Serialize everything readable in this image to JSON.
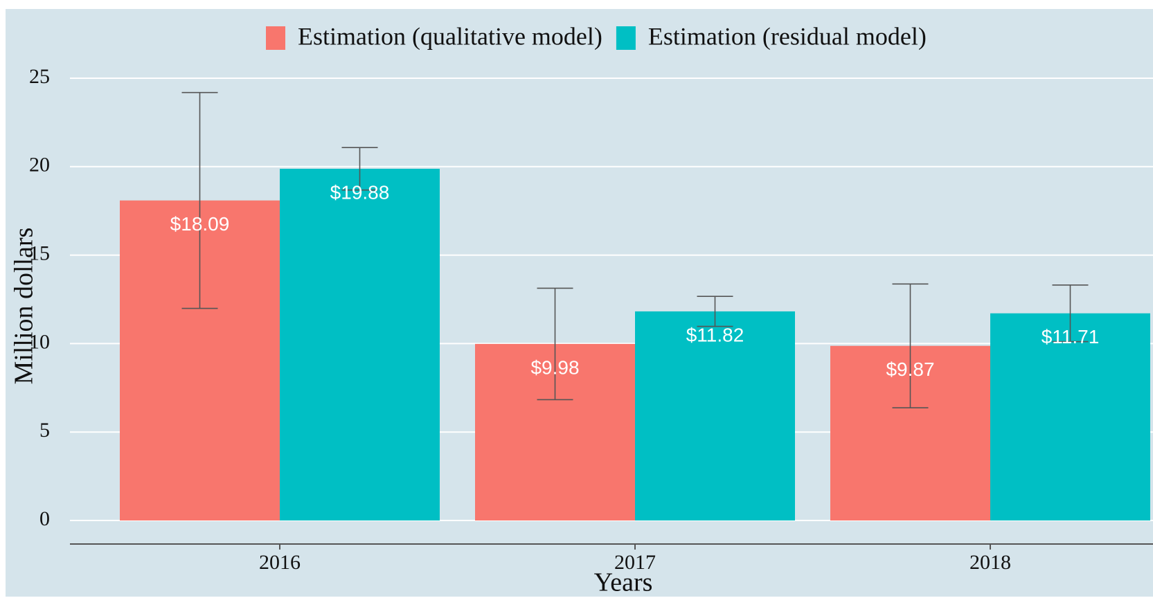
{
  "chart_data": {
    "type": "bar",
    "x_label": "Years",
    "y_label": "Million dollars",
    "categories": [
      "2016",
      "2017",
      "2018"
    ],
    "series": [
      {
        "name": "Estimation (qualitative model)",
        "color": "#f8766d",
        "values": [
          18.09,
          9.98,
          9.87
        ],
        "value_labels": [
          "$18.09",
          "$9.98",
          "$9.87"
        ],
        "errors": [
          6.1,
          3.15,
          3.5
        ]
      },
      {
        "name": "Estimation (residual model)",
        "color": "#00bfc4",
        "values": [
          19.88,
          11.82,
          11.71
        ],
        "value_labels": [
          "$19.88",
          "$11.82",
          "$11.71"
        ],
        "errors": [
          1.2,
          0.85,
          1.6
        ]
      }
    ],
    "ylim": [
      0,
      25
    ],
    "yticks": [
      0,
      5,
      10,
      15,
      20,
      25
    ],
    "grid": true,
    "legend": "top"
  }
}
